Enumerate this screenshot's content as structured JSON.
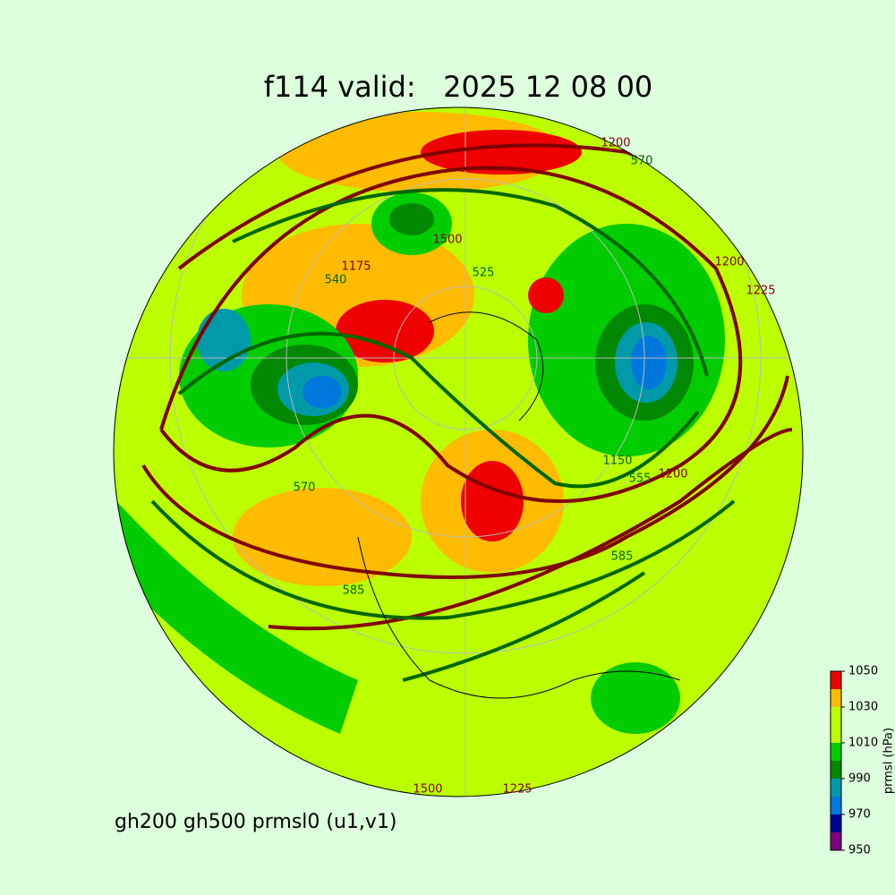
{
  "title": "f114 valid:   2025 12 08 00",
  "subtitle": "gh200 gh500 prmsl0 (u1,v1)",
  "colorbar": {
    "label": "prmsl (hPa)",
    "levels": [
      950,
      960,
      970,
      980,
      990,
      1000,
      1010,
      1020,
      1030,
      1040,
      1050
    ],
    "colors": [
      "#7f007f",
      "#000099",
      "#0077dd",
      "#0099aa",
      "#008800",
      "#00cc00",
      "#bbff00",
      "#bbff00",
      "#ffbb00",
      "#ee0000"
    ],
    "ticks": [
      950,
      970,
      990,
      1010,
      1030,
      1050
    ]
  },
  "contour_labels": [
    "1200",
    "570",
    "1500",
    "1175",
    "540",
    "525",
    "1200",
    "1225",
    "570",
    "555",
    "1200",
    "585",
    "585",
    "1500",
    "1225",
    "1150"
  ]
}
